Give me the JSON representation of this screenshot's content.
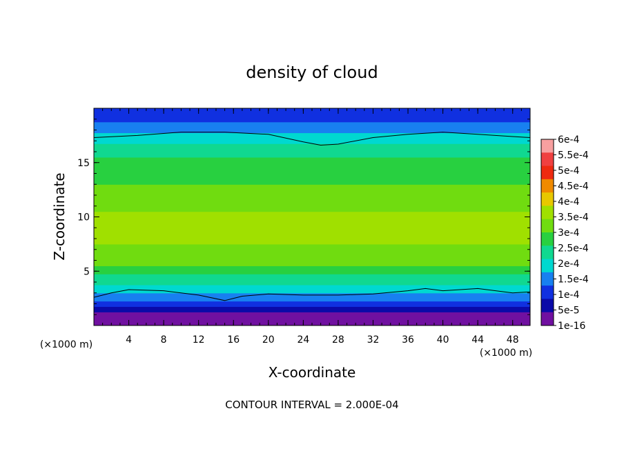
{
  "chart_data": {
    "type": "heatmap",
    "title": "density of cloud",
    "xlabel": "X-coordinate",
    "ylabel": "Z-coordinate",
    "x_units": "(×1000 m)",
    "x_ticks": [
      "4",
      "8",
      "12",
      "16",
      "20",
      "24",
      "28",
      "32",
      "36",
      "40",
      "44",
      "48"
    ],
    "y_ticks": [
      "5",
      "10",
      "15"
    ],
    "xlim": [
      0,
      50
    ],
    "ylim": [
      0,
      20
    ],
    "footer": "CONTOUR INTERVAL = 2.000E-04",
    "colorbar": {
      "labels": [
        "6e-4",
        "5.5e-4",
        "5e-4",
        "4.5e-4",
        "4e-4",
        "3.5e-4",
        "3e-4",
        "2.5e-4",
        "2e-4",
        "1.5e-4",
        "1e-4",
        "5e-5",
        "1e-16"
      ],
      "colors": [
        "#f8a0a0",
        "#f04040",
        "#ee2a10",
        "#f08a00",
        "#e8c800",
        "#a0e000",
        "#70dc10",
        "#28d040",
        "#10d890",
        "#00d8d0",
        "#1880f0",
        "#1030e0",
        "#0a0aa8",
        "#7010a0"
      ]
    },
    "field_profile": [
      {
        "z": 0.3,
        "value": 0.0
      },
      {
        "z": 1.0,
        "value": 3e-05
      },
      {
        "z": 1.6,
        "value": 8e-05
      },
      {
        "z": 2.2,
        "value": 0.00013
      },
      {
        "z": 2.8,
        "value": 0.00018
      },
      {
        "z": 3.5,
        "value": 0.00022
      },
      {
        "z": 4.5,
        "value": 0.00027
      },
      {
        "z": 5.5,
        "value": 0.00032
      },
      {
        "z": 7.0,
        "value": 0.00036
      },
      {
        "z": 9.0,
        "value": 0.00039
      },
      {
        "z": 11.0,
        "value": 0.00036
      },
      {
        "z": 12.5,
        "value": 0.00033
      },
      {
        "z": 14.0,
        "value": 0.00031
      },
      {
        "z": 15.5,
        "value": 0.00028
      },
      {
        "z": 16.5,
        "value": 0.00025
      },
      {
        "z": 17.3,
        "value": 0.0002
      },
      {
        "z": 18.0,
        "value": 0.00017
      },
      {
        "z": 18.8,
        "value": 0.00013
      },
      {
        "z": 19.6,
        "value": 0.0001
      }
    ],
    "contours": [
      {
        "value": 0.0002,
        "points": [
          [
            0,
            17.3
          ],
          [
            5,
            17.5
          ],
          [
            10,
            17.8
          ],
          [
            15,
            17.8
          ],
          [
            20,
            17.6
          ],
          [
            24,
            16.9
          ],
          [
            26,
            16.6
          ],
          [
            28,
            16.7
          ],
          [
            32,
            17.3
          ],
          [
            36,
            17.6
          ],
          [
            40,
            17.8
          ],
          [
            44,
            17.6
          ],
          [
            48,
            17.4
          ],
          [
            50,
            17.3
          ]
        ]
      },
      {
        "value": 0.0002,
        "points": [
          [
            0,
            2.6
          ],
          [
            2,
            3.0
          ],
          [
            4,
            3.3
          ],
          [
            8,
            3.2
          ],
          [
            12,
            2.8
          ],
          [
            15,
            2.3
          ],
          [
            17,
            2.7
          ],
          [
            20,
            2.9
          ],
          [
            24,
            2.8
          ],
          [
            28,
            2.8
          ],
          [
            32,
            2.9
          ],
          [
            36,
            3.2
          ],
          [
            38,
            3.4
          ],
          [
            40,
            3.2
          ],
          [
            44,
            3.4
          ],
          [
            48,
            3.0
          ],
          [
            50,
            3.1
          ]
        ]
      }
    ]
  }
}
